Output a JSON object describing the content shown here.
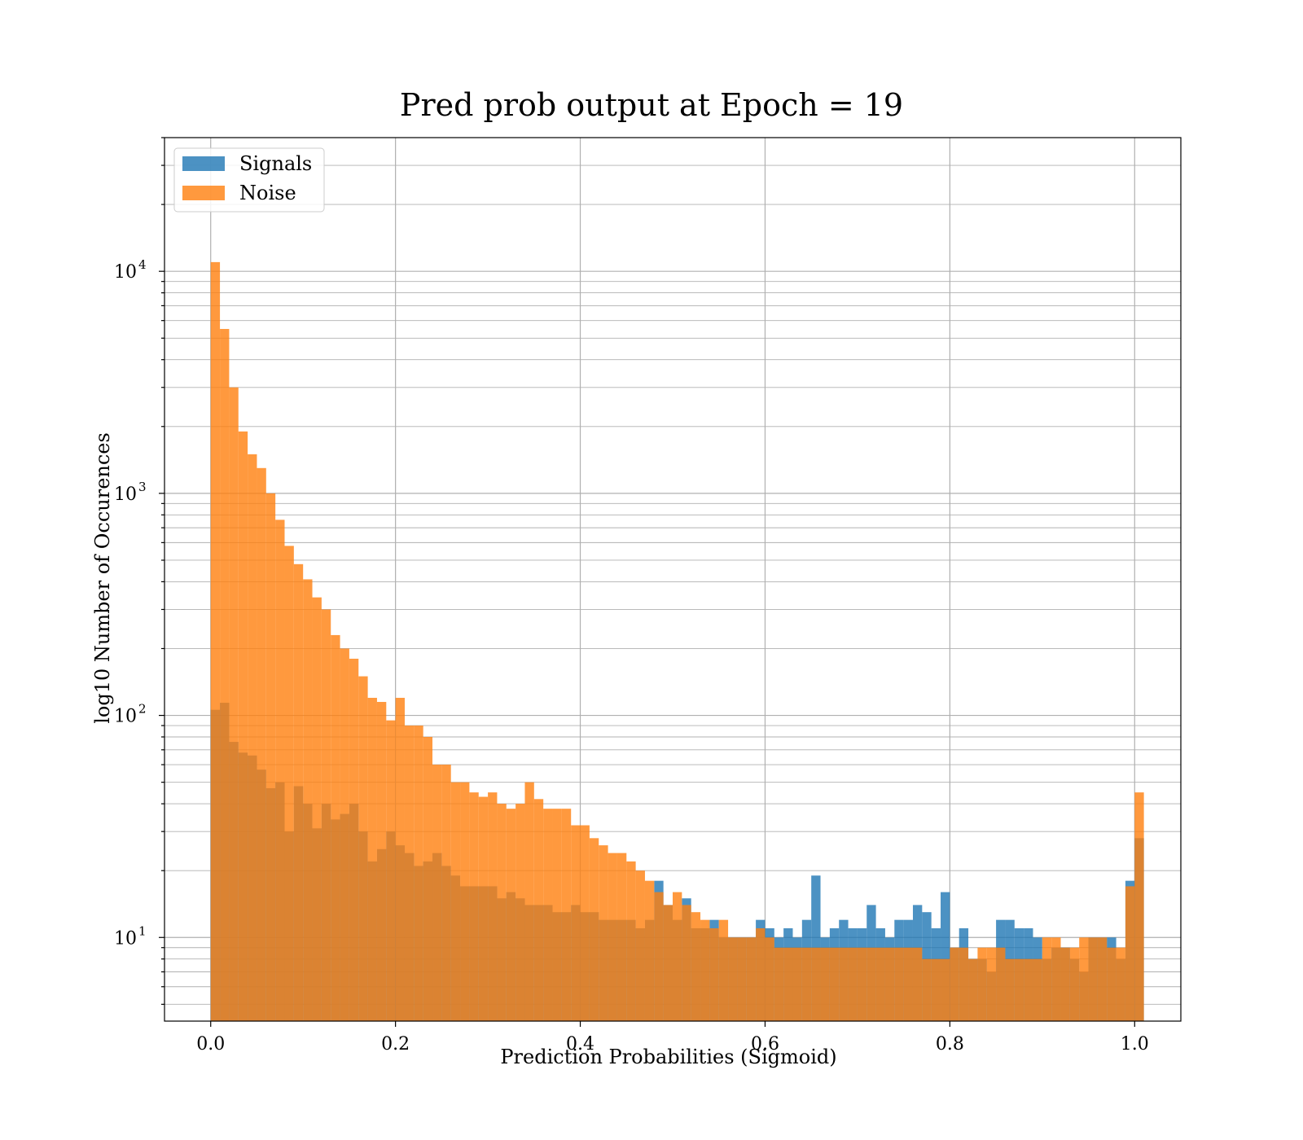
{
  "chart_data": {
    "type": "bar",
    "title": "Pred prob output at Epoch = 19",
    "xlabel": "Prediction Probabilities (Sigmoid)",
    "ylabel": "log10 Number of Occurences",
    "yscale": "log",
    "xlim": [
      -0.05,
      1.05
    ],
    "ylim": [
      4.2,
      40000
    ],
    "grid": true,
    "legend_position": "top-left",
    "x_ticks": [
      {
        "value": 0.0,
        "label": "0.0"
      },
      {
        "value": 0.2,
        "label": "0.2"
      },
      {
        "value": 0.4,
        "label": "0.4"
      },
      {
        "value": 0.6,
        "label": "0.6"
      },
      {
        "value": 0.8,
        "label": "0.8"
      },
      {
        "value": 1.0,
        "label": "1.0"
      }
    ],
    "y_ticks": [
      {
        "value": 10,
        "base": "10",
        "exp": "1"
      },
      {
        "value": 100,
        "base": "10",
        "exp": "2"
      },
      {
        "value": 1000,
        "base": "10",
        "exp": "3"
      },
      {
        "value": 10000,
        "base": "10",
        "exp": "4"
      }
    ],
    "bin_start": 0.0,
    "bin_width": 0.01,
    "series": [
      {
        "name": "Signals",
        "color": "#1f77b4",
        "values": [
          106,
          114,
          76,
          68,
          66,
          57,
          47,
          50,
          30,
          48,
          40,
          31,
          40,
          34,
          36,
          40,
          30,
          22,
          25,
          30,
          26,
          24,
          21,
          22,
          24,
          21,
          19,
          17,
          17,
          17,
          17,
          15,
          16,
          15,
          14,
          14,
          14,
          13,
          13,
          14,
          13,
          13,
          12,
          12,
          12,
          12,
          11,
          12,
          18,
          14,
          12,
          15,
          11,
          11,
          12,
          10,
          10,
          10,
          10,
          12,
          11,
          10,
          11,
          10,
          12,
          19,
          10,
          11,
          12,
          11,
          11,
          14,
          11,
          10,
          12,
          12,
          14,
          13,
          11,
          16,
          9,
          11,
          8,
          8,
          7,
          12,
          12,
          11,
          11,
          10,
          8,
          9,
          9,
          8,
          7,
          10,
          10,
          10,
          8,
          18,
          28
        ]
      },
      {
        "name": "Noise",
        "color": "#ff7f0e",
        "values": [
          11000,
          5500,
          3000,
          1900,
          1500,
          1300,
          1000,
          760,
          580,
          480,
          410,
          340,
          300,
          230,
          200,
          180,
          150,
          120,
          115,
          95,
          120,
          90,
          90,
          80,
          60,
          60,
          50,
          50,
          45,
          43,
          45,
          40,
          38,
          40,
          50,
          42,
          38,
          38,
          38,
          32,
          32,
          28,
          26,
          24,
          24,
          22,
          20,
          18,
          16,
          14,
          16,
          14,
          13,
          12,
          11,
          12,
          10,
          10,
          10,
          11,
          10,
          9,
          9,
          9,
          9,
          9,
          9,
          9,
          9,
          9,
          9,
          9,
          9,
          9,
          9,
          9,
          9,
          8,
          8,
          8,
          9,
          9,
          8,
          9,
          9,
          9,
          8,
          8,
          8,
          8,
          10,
          10,
          9,
          9,
          10,
          10,
          10,
          9,
          9,
          17,
          45
        ]
      }
    ]
  }
}
